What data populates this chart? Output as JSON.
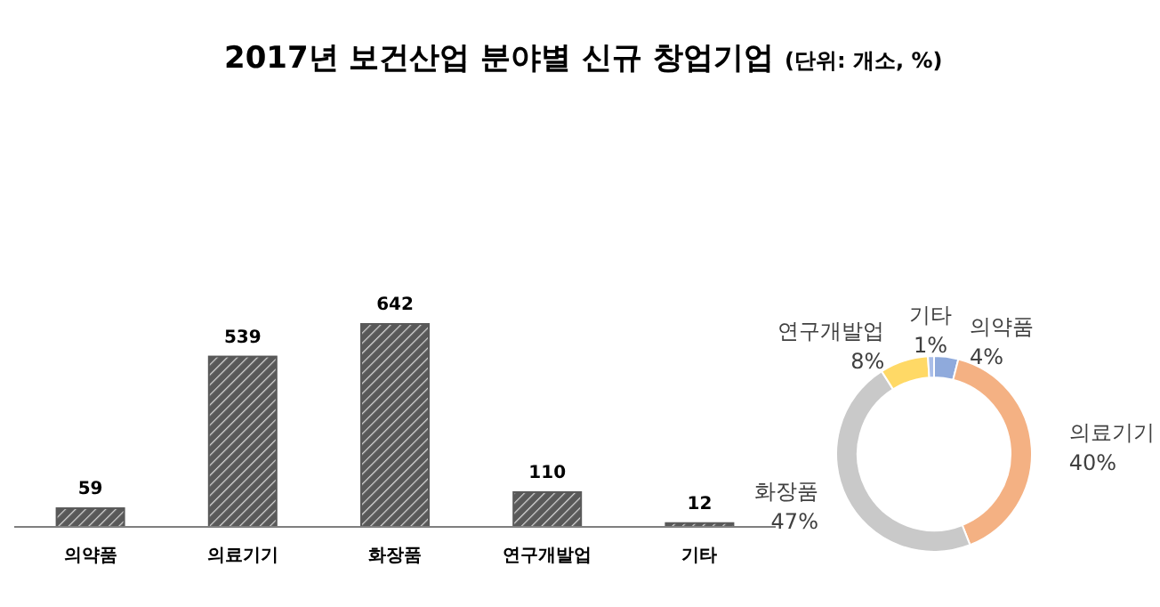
{
  "chart_data": [
    {
      "type": "bar",
      "title": "2017년 보건산업 분야별 신규 창업기업",
      "categories": [
        "의약품",
        "의료기기",
        "화장품",
        "연구개발업",
        "기타"
      ],
      "values": [
        59,
        539,
        642,
        110,
        12
      ],
      "color": "#595959",
      "data_labels": true
    },
    {
      "type": "donut",
      "subtitle": "(단위: 개소, %)",
      "categories": [
        "의약품",
        "의료기기",
        "화장품",
        "연구개발업",
        "기타"
      ],
      "values": [
        4,
        40,
        47,
        8,
        1
      ],
      "value_labels": [
        "4%",
        "40%",
        "47%",
        "8%",
        "1%"
      ],
      "colors": [
        "#8faadc",
        "#f4b183",
        "#c9c9c9",
        "#ffd966",
        "#a9bde8"
      ],
      "data_labels": true
    }
  ]
}
